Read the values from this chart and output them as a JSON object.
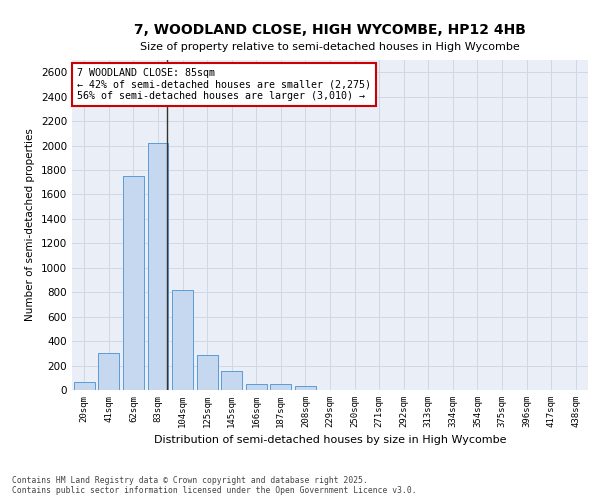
{
  "title": "7, WOODLAND CLOSE, HIGH WYCOMBE, HP12 4HB",
  "subtitle": "Size of property relative to semi-detached houses in High Wycombe",
  "xlabel": "Distribution of semi-detached houses by size in High Wycombe",
  "ylabel": "Number of semi-detached properties",
  "categories": [
    "20sqm",
    "41sqm",
    "62sqm",
    "83sqm",
    "104sqm",
    "125sqm",
    "145sqm",
    "166sqm",
    "187sqm",
    "208sqm",
    "229sqm",
    "250sqm",
    "271sqm",
    "292sqm",
    "313sqm",
    "334sqm",
    "354sqm",
    "375sqm",
    "396sqm",
    "417sqm",
    "438sqm"
  ],
  "values": [
    62,
    300,
    1755,
    2020,
    815,
    290,
    155,
    52,
    46,
    35,
    0,
    0,
    0,
    0,
    0,
    0,
    0,
    0,
    0,
    0,
    0
  ],
  "bar_color": "#c5d8f0",
  "bar_edge_color": "#5b9bd5",
  "vline_color": "#333333",
  "annotation_title": "7 WOODLAND CLOSE: 85sqm",
  "annotation_line1": "← 42% of semi-detached houses are smaller (2,275)",
  "annotation_line2": "56% of semi-detached houses are larger (3,010) →",
  "annotation_box_facecolor": "#ffffff",
  "annotation_box_edgecolor": "#cc0000",
  "ylim": [
    0,
    2700
  ],
  "yticks": [
    0,
    200,
    400,
    600,
    800,
    1000,
    1200,
    1400,
    1600,
    1800,
    2000,
    2200,
    2400,
    2600
  ],
  "grid_color": "#d0d8e8",
  "background_color": "#eaeff7",
  "footer_line1": "Contains HM Land Registry data © Crown copyright and database right 2025.",
  "footer_line2": "Contains public sector information licensed under the Open Government Licence v3.0."
}
